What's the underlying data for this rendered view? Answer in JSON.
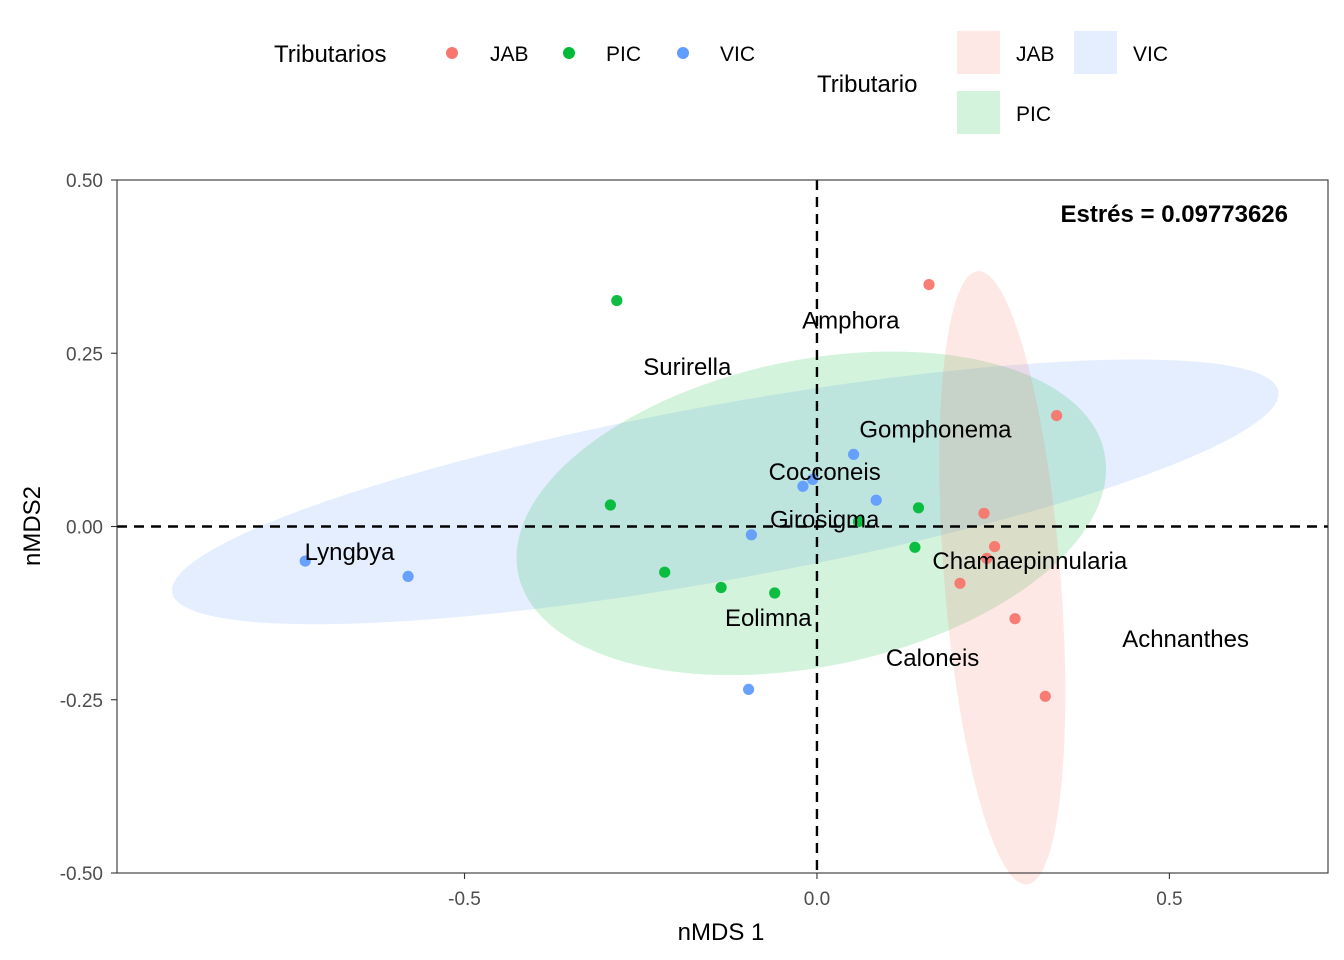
{
  "chart_data": {
    "type": "scatter",
    "title": "",
    "xlabel": "nMDS 1",
    "ylabel": "nMDS2",
    "xlim": [
      -0.993,
      0.725
    ],
    "ylim": [
      -0.5,
      0.5
    ],
    "xticks": [
      -0.5,
      0.0,
      0.5
    ],
    "xtick_labels": [
      "-0.5",
      "0.0",
      "0.5"
    ],
    "yticks": [
      -0.5,
      -0.25,
      0.0,
      0.25,
      0.5
    ],
    "ytick_labels": [
      "-0.50",
      "-0.25",
      "0.00",
      "0.25",
      "0.50"
    ],
    "grid": false,
    "reference_lines": {
      "x": 0,
      "y": 0,
      "style": "dashed"
    },
    "annotation": "Estrés = 0.09773626",
    "legend_points": {
      "title": "Tributarios",
      "placement": "top",
      "entries": [
        "JAB",
        "PIC",
        "VIC"
      ]
    },
    "legend_ellipses": {
      "title": "Tributario",
      "placement": "top",
      "entries": [
        "JAB",
        "PIC",
        "VIC"
      ]
    },
    "colors": {
      "JAB": "#F8766D",
      "PIC": "#00BA38",
      "VIC": "#619CFF"
    },
    "series": [
      {
        "name": "JAB",
        "points": [
          [
            0.159,
            0.349
          ],
          [
            0.34,
            0.16
          ],
          [
            0.237,
            0.019
          ],
          [
            0.252,
            -0.029
          ],
          [
            0.241,
            -0.046
          ],
          [
            0.203,
            -0.082
          ],
          [
            0.281,
            -0.133
          ],
          [
            0.324,
            -0.245
          ]
        ]
      },
      {
        "name": "PIC",
        "points": [
          [
            -0.284,
            0.326
          ],
          [
            -0.293,
            0.031
          ],
          [
            -0.216,
            -0.066
          ],
          [
            -0.136,
            -0.088
          ],
          [
            -0.06,
            -0.096
          ],
          [
            0.144,
            0.027
          ],
          [
            0.059,
            0.007
          ],
          [
            0.139,
            -0.03
          ]
        ]
      },
      {
        "name": "VIC",
        "points": [
          [
            -0.726,
            -0.05
          ],
          [
            -0.58,
            -0.072
          ],
          [
            -0.093,
            -0.012
          ],
          [
            -0.097,
            -0.235
          ],
          [
            -0.02,
            0.058
          ],
          [
            -0.006,
            0.068
          ],
          [
            0.052,
            0.104
          ],
          [
            0.084,
            0.038
          ]
        ]
      }
    ],
    "ellipses": [
      {
        "name": "JAB",
        "center": [
          0.263,
          -0.074
        ],
        "semi_major": 0.444,
        "semi_minor": 0.0825,
        "angle_deg": 94.5
      },
      {
        "name": "PIC",
        "center": [
          -0.008,
          0.019
        ],
        "semi_major": 0.425,
        "semi_minor": 0.221,
        "angle_deg": 12
      },
      {
        "name": "VIC",
        "center": [
          -0.13,
          0.05
        ],
        "semi_major": 0.798,
        "semi_minor": 0.126,
        "angle_deg": 10.5
      }
    ],
    "species_labels": [
      {
        "text": "Amphora",
        "x": 0.048,
        "y": 0.297
      },
      {
        "text": "Surirella",
        "x": -0.184,
        "y": 0.23
      },
      {
        "text": "Gomphonema",
        "x": 0.168,
        "y": 0.14
      },
      {
        "text": "Cocconeis",
        "x": 0.011,
        "y": 0.079
      },
      {
        "text": "Girosigma",
        "x": 0.011,
        "y": 0.01
      },
      {
        "text": "Lyngbya",
        "x": -0.663,
        "y": -0.037
      },
      {
        "text": "Chamaepinnularia",
        "x": 0.302,
        "y": -0.05
      },
      {
        "text": "Eolimna",
        "x": -0.069,
        "y": -0.132
      },
      {
        "text": "Achnanthes",
        "x": 0.523,
        "y": -0.162
      },
      {
        "text": "Caloneis",
        "x": 0.164,
        "y": -0.19
      }
    ]
  }
}
